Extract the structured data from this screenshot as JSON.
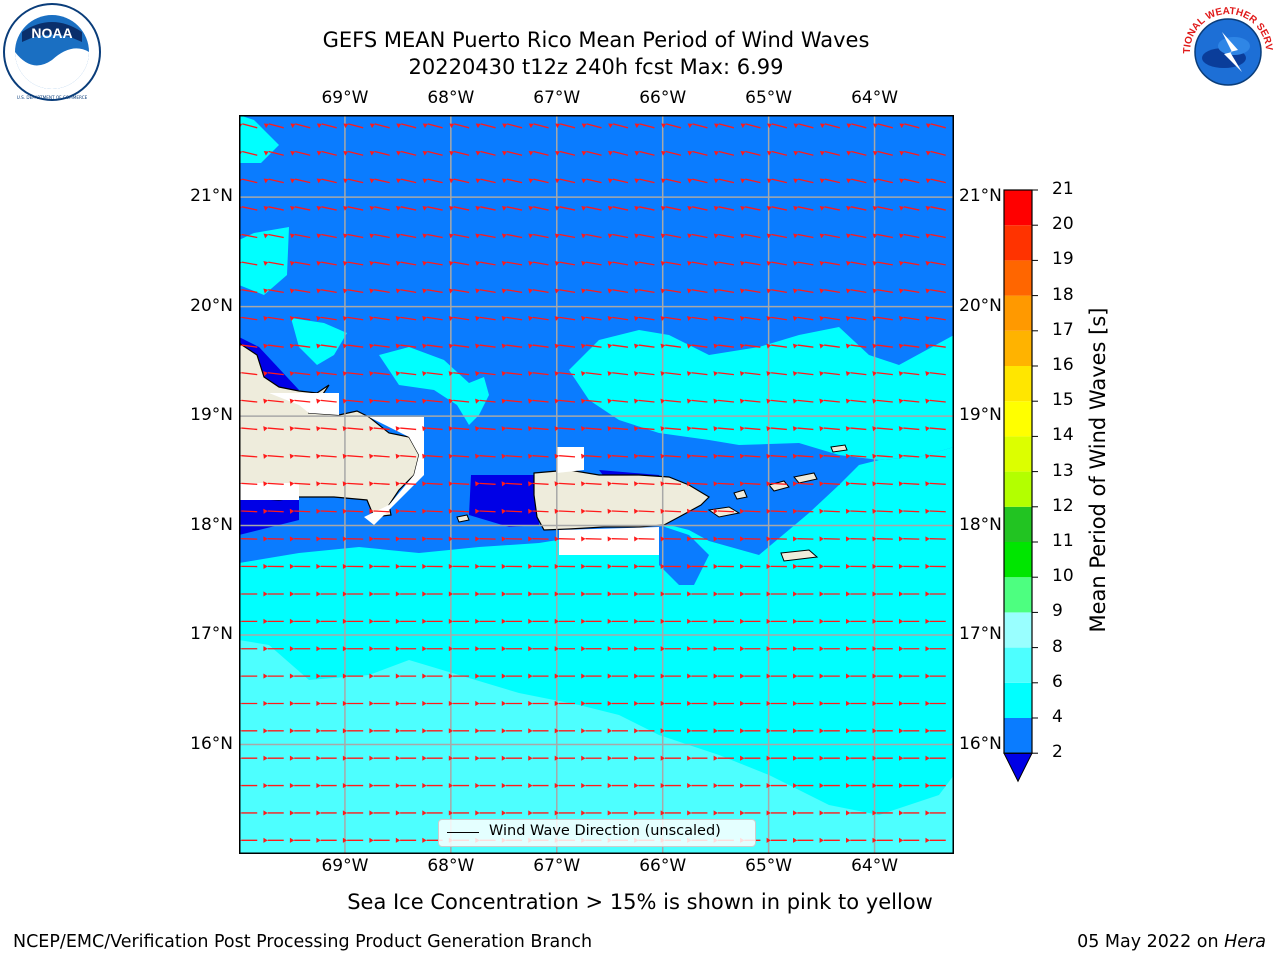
{
  "title": {
    "line1": "GEFS MEAN Puerto Rico Mean Period of Wind Waves",
    "line2": "20220430 t12z 240h fcst   Max: 6.99"
  },
  "logos": {
    "noaa": {
      "center_text": "NOAA",
      "ring_text": "NATIONAL OCEANIC AND ATMOSPHERIC ADMINISTRATION · U.S. DEPARTMENT OF COMMERCE",
      "icon": "noaa-seal-icon"
    },
    "nws": {
      "ring_text": "NATIONAL WEATHER SERVICE",
      "icon": "nws-seal-icon"
    }
  },
  "map": {
    "lon_labels": [
      "69°W",
      "68°W",
      "67°W",
      "66°W",
      "65°W",
      "64°W"
    ],
    "lat_labels": [
      "21°N",
      "20°N",
      "19°N",
      "18°N",
      "17°N",
      "16°N"
    ],
    "lon_values": [
      -69,
      -68,
      -67,
      -66,
      -65,
      -64
    ],
    "lat_values": [
      21,
      20,
      19,
      18,
      17,
      16
    ],
    "extent": {
      "lon_min": -70.0,
      "lon_max": -63.25,
      "lat_min": 15.0,
      "lat_max": 21.75
    },
    "gridlines": true,
    "land_color": "#eeecdc",
    "arrow_color": "#ff1a1a",
    "legend": {
      "label": "Wind Wave Direction (unscaled)",
      "position": "bottom-center"
    }
  },
  "colorbar": {
    "label": "Mean Period of Wind Waves [s]",
    "ticks": [
      "2",
      "4",
      "6",
      "8",
      "9",
      "10",
      "11",
      "12",
      "13",
      "14",
      "15",
      "16",
      "17",
      "18",
      "19",
      "20",
      "21"
    ],
    "under_color": "#0000e6",
    "colors": [
      "#0a7cff",
      "#00ffff",
      "#4dffff",
      "#99ffff",
      "#4dff80",
      "#00e600",
      "#22c422",
      "#b3ff00",
      "#dcff00",
      "#ffff00",
      "#ffe600",
      "#ffb300",
      "#ff9900",
      "#ff6600",
      "#ff3300",
      "#ff0000"
    ]
  },
  "note": "Sea Ice Concentration > 15% is shown in pink to yellow",
  "footer": {
    "left": "NCEP/EMC/Verification Post Processing Product Generation Branch",
    "right_date": "05 May 2022 on ",
    "right_host": "Hera"
  }
}
